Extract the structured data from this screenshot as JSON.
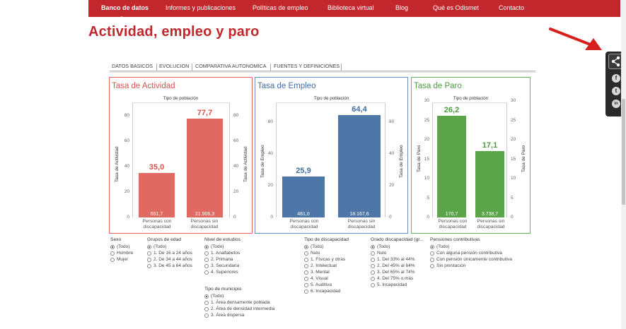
{
  "nav": {
    "items": [
      "Banco de datos",
      "Informes y publicaciones",
      "Políticas de empleo",
      "Biblioteca virtual",
      "Blog",
      "Qué es Odismet",
      "Contacto"
    ]
  },
  "page": {
    "title": "Actividad, empleo y paro"
  },
  "tabs": [
    "DATOS BASICOS",
    "EVOLUCION",
    "COMPARATIVA AUTONOMICA",
    "FUENTES Y DEFINICIONES"
  ],
  "chart_data": [
    {
      "type": "bar",
      "title": "Tasa de Actividad",
      "subtitle": "Tipo de población",
      "ylabel": "Tasa de Actividad",
      "ylim": [
        0,
        90
      ],
      "ticks": [
        "80",
        "60",
        "40",
        "20",
        "0"
      ],
      "tick_values": [
        80,
        60,
        40,
        20,
        0
      ],
      "categories": [
        "Personas con discapacidad",
        "Personas sin discapacidad"
      ],
      "values": [
        35.0,
        77.7
      ],
      "value_labels": [
        "35,0",
        "77,7"
      ],
      "inner_labels": [
        "651,7",
        "21.906,3"
      ],
      "color": "#e06a61",
      "title_color": "#d9534f"
    },
    {
      "type": "bar",
      "title": "Tasa de Empleo",
      "subtitle": "Tipo de población",
      "ylabel": "Tasa de Empleo",
      "ylim": [
        0,
        72
      ],
      "ticks": [
        "60",
        "40",
        "20",
        "0"
      ],
      "tick_values": [
        60,
        40,
        20,
        0
      ],
      "categories": [
        "Personas con discapacidad",
        "Personas sin discapacidad"
      ],
      "values": [
        25.9,
        64.4
      ],
      "value_labels": [
        "25,9",
        "64,4"
      ],
      "inner_labels": [
        "481,0",
        "18.167,6"
      ],
      "color": "#4e76a6",
      "title_color": "#3f6ea3"
    },
    {
      "type": "bar",
      "title": "Tasa de Paro",
      "subtitle": "Tipo de población",
      "ylabel": "Tasa de Paro",
      "ylim": [
        0,
        29.5
      ],
      "ticks": [
        "30",
        "25",
        "20",
        "15",
        "10",
        "5",
        "0"
      ],
      "tick_values": [
        30,
        25,
        20,
        15,
        10,
        5,
        0
      ],
      "categories": [
        "Personas con discapacidad",
        "Personas sin discapacidad"
      ],
      "values": [
        26.2,
        17.1
      ],
      "value_labels": [
        "26,2",
        "17,1"
      ],
      "inner_labels": [
        "170,7",
        "3.738,7"
      ],
      "color": "#5aa449",
      "title_color": "#4d9a3e"
    }
  ],
  "filters": {
    "sexo": {
      "title": "Sexo",
      "options": [
        "(Todo)",
        "Hombre",
        "Mujer"
      ]
    },
    "edad": {
      "title": "Grupos de edad",
      "options": [
        "(Todo)",
        "1. De 16 a 24 años",
        "2. De 34 a 44 años",
        "3. De 45 a 64 años"
      ]
    },
    "estudios": {
      "title": "Nivel de estudios",
      "options": [
        "(Todo)",
        "1. Analfabetos",
        "2. Primaria",
        "3. Secundaria",
        "4. Superiores"
      ]
    },
    "municipio": {
      "title": "Tipo de municipio",
      "options": [
        "(Todo)",
        "1. Área densamente poblada",
        "2. Área de densidad intermedia",
        "3. Área dispersa"
      ]
    },
    "tipo_disc": {
      "title": "Tipo de discapacidad",
      "options": [
        "(Todo)",
        "Nulo",
        "1. Físicas y otras",
        "2. Intelectual",
        "3. Mental",
        "4. Visual",
        "5. Auditiva",
        "6. Incapacidad"
      ]
    },
    "grado_disc": {
      "title": "Grado discapacidad (gr...",
      "options": [
        "(Todo)",
        "Nulo",
        "1. Del 33% al 44%",
        "2. Del 45% al 64%",
        "3. Del 65% al 74%",
        "4. Del 75% o más",
        "5. Incapacidad"
      ]
    },
    "pensiones": {
      "title": "Pensiones contributivas",
      "options": [
        "(Todo)",
        "Con alguna pensión contributiva",
        "Con pensión únicamente contributiva",
        "Sin prestación"
      ]
    }
  },
  "share": {
    "icons": [
      "share-icon",
      "facebook-icon",
      "twitter-icon",
      "linkedin-icon"
    ],
    "glyphs": [
      "f",
      "t",
      "in"
    ]
  }
}
